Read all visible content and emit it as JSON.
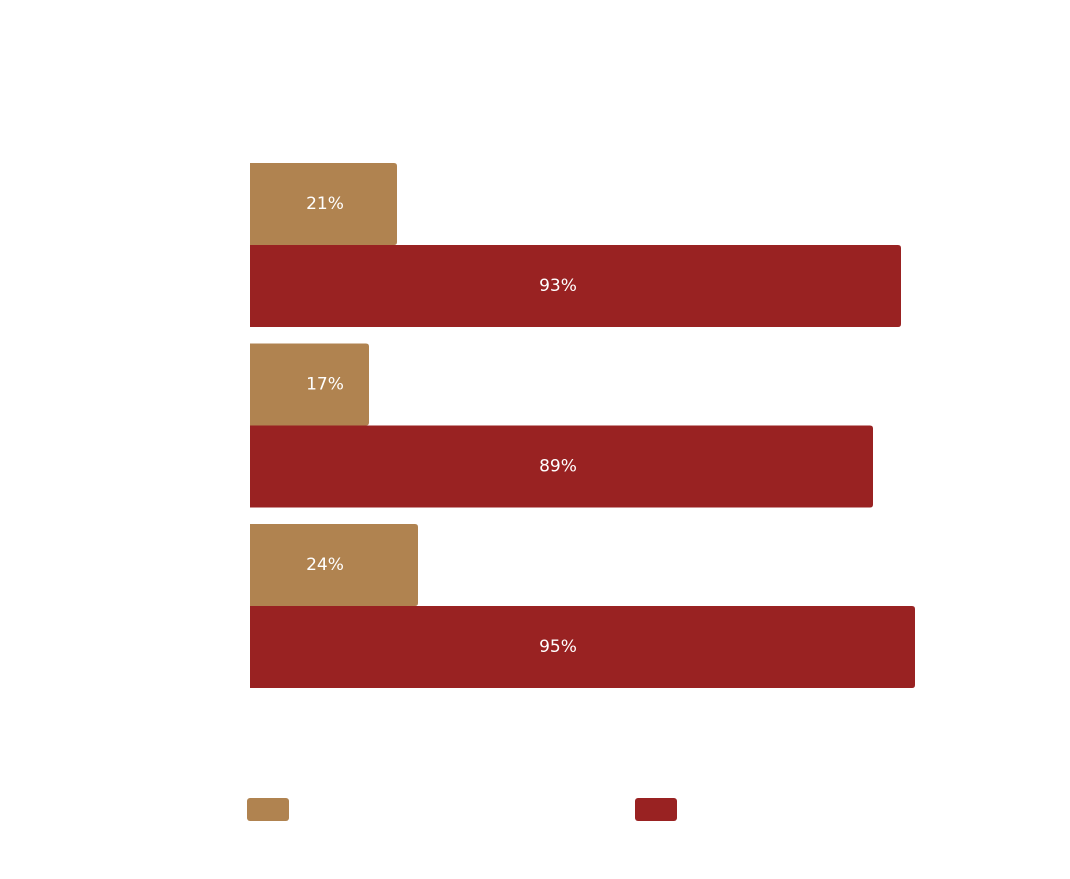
{
  "chart_data": {
    "type": "barh",
    "categories": [
      null,
      null,
      null
    ],
    "series": [
      {
        "color": "#b08350",
        "values": [
          21,
          17,
          24
        ],
        "value_labels": [
          "21%",
          "17%",
          "24%"
        ]
      },
      {
        "color": "#992222",
        "values": [
          93,
          89,
          95
        ],
        "value_labels": [
          "93%",
          "89%",
          "95%"
        ]
      }
    ],
    "xlim": [
      0,
      100
    ]
  }
}
